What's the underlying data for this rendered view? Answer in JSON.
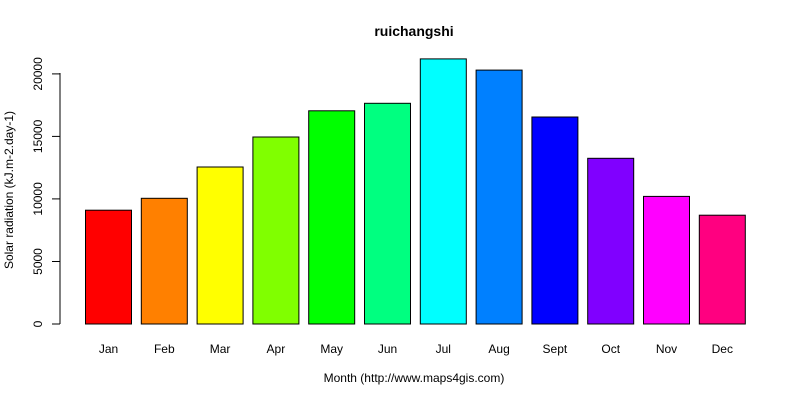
{
  "chart_data": {
    "type": "bar",
    "title": "ruichangshi",
    "xlabel": "Month (http://www.maps4gis.com)",
    "ylabel": "Solar radiation (kJ.m-2.day-1)",
    "categories": [
      "Jan",
      "Feb",
      "Mar",
      "Apr",
      "May",
      "Jun",
      "Jul",
      "Aug",
      "Sept",
      "Oct",
      "Nov",
      "Dec"
    ],
    "values": [
      9100,
      10050,
      12550,
      14950,
      17050,
      17650,
      21200,
      20300,
      16550,
      13250,
      10200,
      8700
    ],
    "colors": [
      "#FF0000",
      "#FF8000",
      "#FFFF00",
      "#80FF00",
      "#00FF00",
      "#00FF80",
      "#00FFFF",
      "#0080FF",
      "#0000FF",
      "#8000FF",
      "#FF00FF",
      "#FF0080"
    ],
    "yticks": [
      0,
      5000,
      10000,
      15000,
      20000
    ],
    "ylim": [
      0,
      21200
    ],
    "grid": false,
    "legend": "none"
  }
}
